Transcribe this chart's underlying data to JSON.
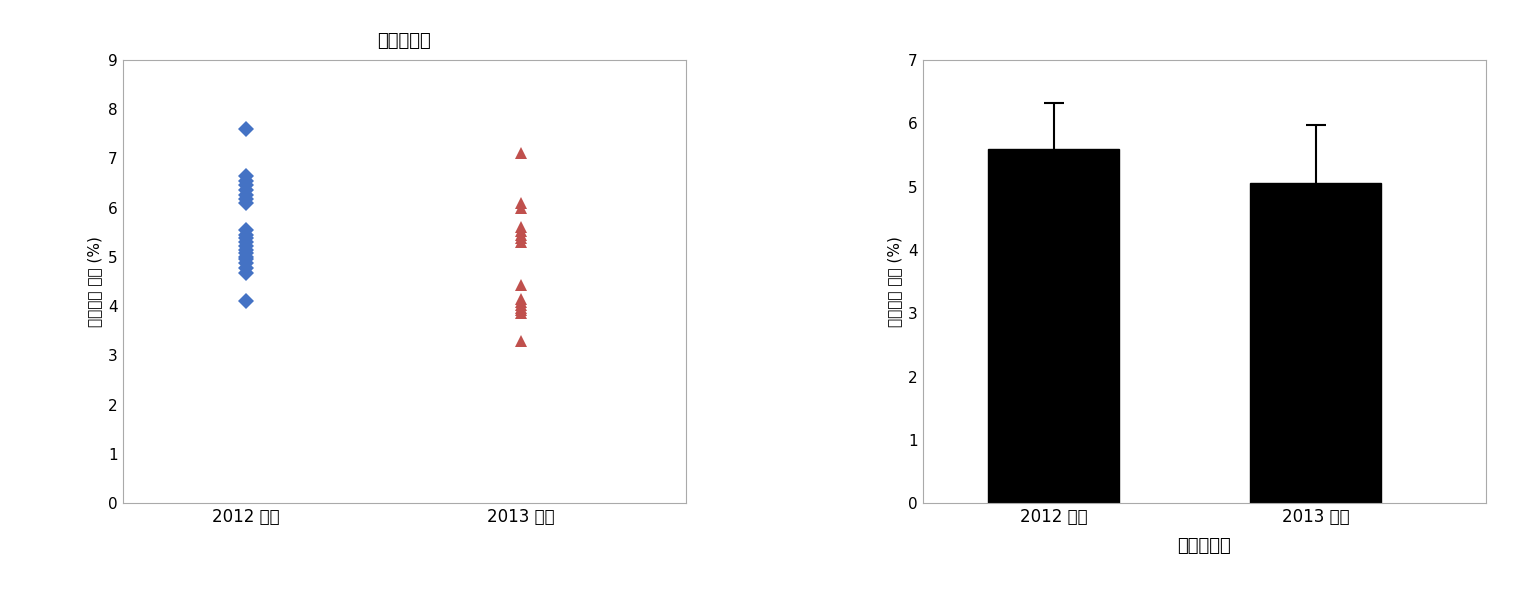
{
  "title_scatter": "잘쌍고추장",
  "xlabel_bar": "잘쌍고추장",
  "ylabel": "조단백질 함량 (%)",
  "categories": [
    "2012 농가",
    "2013 업체"
  ],
  "scatter_2012": [
    7.6,
    6.65,
    6.55,
    6.45,
    6.35,
    6.25,
    6.18,
    6.1,
    5.55,
    5.45,
    5.38,
    5.3,
    5.22,
    5.15,
    5.08,
    5.0,
    4.95,
    4.88,
    4.78,
    4.68,
    4.1
  ],
  "scatter_2013": [
    7.1,
    6.1,
    6.0,
    5.6,
    5.52,
    5.45,
    5.38,
    5.3,
    4.42,
    4.15,
    4.08,
    4.02,
    3.97,
    3.92,
    3.87,
    3.3
  ],
  "bar_values": [
    5.6,
    5.05
  ],
  "bar_errors": [
    0.72,
    0.92
  ],
  "scatter_color_2012": "#4472C4",
  "scatter_color_2013": "#C0504D",
  "bar_color": "#000000",
  "scatter_ylim": [
    0,
    9
  ],
  "bar_ylim": [
    0,
    7
  ],
  "scatter_yticks": [
    0,
    1,
    2,
    3,
    4,
    5,
    6,
    7,
    8,
    9
  ],
  "bar_yticks": [
    0,
    1,
    2,
    3,
    4,
    5,
    6,
    7
  ],
  "background_color": "#ffffff",
  "scatter_marker_2012": "D",
  "scatter_marker_2013": "^",
  "spine_color": "#aaaaaa"
}
